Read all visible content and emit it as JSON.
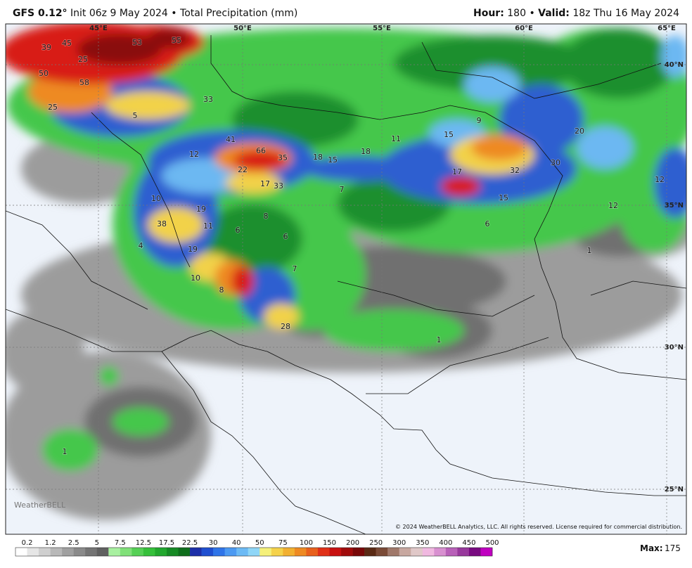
{
  "header": {
    "left": {
      "model": "GFS 0.12°",
      "init": "Init 06z 9 May 2024",
      "separator": "•",
      "product": "Total Precipitation (mm)"
    },
    "right": {
      "hour_label": "Hour:",
      "hour": "180",
      "separator": "•",
      "valid_label": "Valid:",
      "valid": "18z Thu 16 May 2024"
    }
  },
  "map": {
    "longitude_labels": [
      "45°E",
      "50°E",
      "55°E",
      "60°E",
      "65°E"
    ],
    "latitude_labels": [
      "40°N",
      "35°N",
      "30°N",
      "25°N"
    ],
    "precip_labels": [
      "39",
      "45",
      "53",
      "55",
      "25",
      "50",
      "58",
      "25",
      "5",
      "33",
      "41",
      "66",
      "35",
      "18",
      "15",
      "18",
      "11",
      "9",
      "15",
      "20",
      "22",
      "17",
      "33",
      "7",
      "12",
      "17",
      "32",
      "30",
      "12",
      "15",
      "12",
      "10",
      "19",
      "8",
      "38",
      "11",
      "6",
      "6",
      "6",
      "4",
      "19",
      "1",
      "7",
      "10",
      "8",
      "28",
      "1",
      "1"
    ],
    "watermark": "WeatherBELL",
    "copyright": "© 2024 WeatherBELL Analytics, LLC. All rights reserved. License required for commercial distribution."
  },
  "colorbar": {
    "labels": [
      "0.2",
      "1.2",
      "2.5",
      "5",
      "7.5",
      "12.5",
      "17.5",
      "22.5",
      "30",
      "40",
      "50",
      "75",
      "100",
      "150",
      "200",
      "250",
      "300",
      "350",
      "400",
      "450",
      "500"
    ],
    "colors": [
      "#ffffff",
      "#e6e6e6",
      "#cfcfcf",
      "#b8b8b8",
      "#a0a0a0",
      "#8a8a8a",
      "#747474",
      "#606060",
      "#a8f0a0",
      "#80e078",
      "#55d055",
      "#35c03a",
      "#22a82e",
      "#168a24",
      "#0f6e1c",
      "#1c2fa8",
      "#1f4fd0",
      "#2f74e8",
      "#4c9af2",
      "#6cbaf5",
      "#8fd6f7",
      "#f5f07a",
      "#f5d24a",
      "#f2b030",
      "#ee8a22",
      "#e8601c",
      "#e03018",
      "#c81010",
      "#a00a0a",
      "#780808",
      "#5a2a14",
      "#7a4a36",
      "#a0786a",
      "#c8a8a0",
      "#e0c8c8",
      "#f0b8e0",
      "#d890d0",
      "#b860b8",
      "#98389c",
      "#780a80",
      "#c000c0"
    ],
    "max_label": "Max:",
    "max_value": "175"
  }
}
